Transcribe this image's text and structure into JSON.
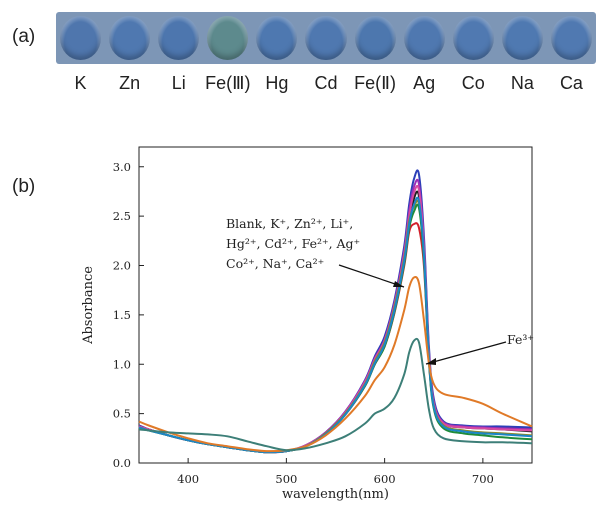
{
  "panel_a": {
    "label": "(a)",
    "wells": [
      {
        "label": "K",
        "color": "#4f76ad"
      },
      {
        "label": "Zn",
        "color": "#4f78b0"
      },
      {
        "label": "Li",
        "color": "#4d76ae"
      },
      {
        "label": "Fe(Ⅲ)",
        "color": "#5d8a8d"
      },
      {
        "label": "Hg",
        "color": "#4e78b0"
      },
      {
        "label": "Cd",
        "color": "#4f78b0"
      },
      {
        "label": "Fe(Ⅱ)",
        "color": "#4d77ae"
      },
      {
        "label": "Ag",
        "color": "#4f78b0"
      },
      {
        "label": "Co",
        "color": "#5079b1"
      },
      {
        "label": "Na",
        "color": "#4f79b1"
      },
      {
        "label": "Ca",
        "color": "#5079b1"
      }
    ]
  },
  "panel_b": {
    "label": "(b)",
    "annotation_group": [
      "Blank, K⁺, Zn²⁺, Li⁺,",
      "Hg²⁺, Cd²⁺, Fe²⁺, Ag⁺",
      "Co²⁺, Na⁺, Ca²⁺"
    ],
    "annotation_fe3": "Fe³⁺"
  },
  "chart_data": {
    "type": "line",
    "xlabel": "wavelength(nm)",
    "ylabel": "Absorbance",
    "xlim": [
      350,
      750
    ],
    "ylim": [
      0,
      3.2
    ],
    "xticks": [
      400,
      500,
      600,
      700
    ],
    "yticks": [
      0.0,
      0.5,
      1.0,
      1.5,
      2.0,
      2.5,
      3.0
    ],
    "ytick_labels": [
      "0.0",
      "0.5",
      "1.0",
      "1.5",
      "2.0",
      "2.5",
      "3.0"
    ],
    "x": [
      350,
      360,
      380,
      400,
      420,
      440,
      460,
      480,
      500,
      520,
      540,
      560,
      580,
      590,
      600,
      610,
      620,
      625,
      630,
      635,
      640,
      645,
      650,
      660,
      680,
      700,
      720,
      750
    ],
    "series": [
      {
        "color": "#1f1f1f",
        "values": [
          0.37,
          0.34,
          0.28,
          0.23,
          0.19,
          0.16,
          0.13,
          0.11,
          0.12,
          0.17,
          0.3,
          0.5,
          0.8,
          1.02,
          1.2,
          1.55,
          2.05,
          2.4,
          2.68,
          2.7,
          2.1,
          1.1,
          0.6,
          0.4,
          0.36,
          0.35,
          0.34,
          0.32
        ]
      },
      {
        "color": "#d21f2a",
        "values": [
          0.38,
          0.34,
          0.28,
          0.23,
          0.19,
          0.16,
          0.13,
          0.11,
          0.12,
          0.17,
          0.3,
          0.49,
          0.78,
          1.0,
          1.18,
          1.52,
          2.0,
          2.34,
          2.42,
          2.38,
          2.0,
          1.05,
          0.58,
          0.4,
          0.37,
          0.36,
          0.36,
          0.35
        ]
      },
      {
        "color": "#2c3fb8",
        "values": [
          0.38,
          0.34,
          0.28,
          0.23,
          0.19,
          0.16,
          0.13,
          0.11,
          0.12,
          0.18,
          0.31,
          0.52,
          0.84,
          1.08,
          1.28,
          1.65,
          2.2,
          2.62,
          2.88,
          2.92,
          2.3,
          1.2,
          0.65,
          0.42,
          0.38,
          0.37,
          0.37,
          0.36
        ]
      },
      {
        "color": "#9b2fb8",
        "values": [
          0.37,
          0.34,
          0.28,
          0.23,
          0.19,
          0.16,
          0.13,
          0.11,
          0.12,
          0.18,
          0.31,
          0.52,
          0.83,
          1.06,
          1.25,
          1.62,
          2.15,
          2.55,
          2.8,
          2.82,
          2.22,
          1.15,
          0.62,
          0.41,
          0.37,
          0.36,
          0.35,
          0.34
        ]
      },
      {
        "color": "#d64aa0",
        "values": [
          0.37,
          0.34,
          0.28,
          0.23,
          0.19,
          0.16,
          0.13,
          0.11,
          0.12,
          0.18,
          0.3,
          0.51,
          0.82,
          1.05,
          1.24,
          1.6,
          2.12,
          2.5,
          2.74,
          2.76,
          2.18,
          1.12,
          0.6,
          0.4,
          0.36,
          0.35,
          0.34,
          0.33
        ]
      },
      {
        "color": "#8a8a2c",
        "values": [
          0.36,
          0.33,
          0.28,
          0.23,
          0.19,
          0.16,
          0.13,
          0.11,
          0.12,
          0.17,
          0.3,
          0.5,
          0.8,
          1.03,
          1.22,
          1.58,
          2.08,
          2.45,
          2.6,
          2.62,
          2.1,
          1.08,
          0.58,
          0.38,
          0.33,
          0.31,
          0.3,
          0.28
        ]
      },
      {
        "color": "#1f8c3a",
        "values": [
          0.35,
          0.33,
          0.28,
          0.23,
          0.19,
          0.16,
          0.13,
          0.11,
          0.12,
          0.17,
          0.29,
          0.49,
          0.78,
          1.0,
          1.18,
          1.53,
          2.02,
          2.38,
          2.55,
          2.58,
          2.06,
          1.05,
          0.55,
          0.35,
          0.3,
          0.28,
          0.26,
          0.24
        ]
      },
      {
        "color": "#1b86c7",
        "values": [
          0.36,
          0.33,
          0.28,
          0.23,
          0.19,
          0.16,
          0.13,
          0.11,
          0.12,
          0.17,
          0.29,
          0.49,
          0.79,
          1.01,
          1.2,
          1.55,
          2.05,
          2.42,
          2.62,
          2.65,
          2.12,
          1.08,
          0.57,
          0.37,
          0.32,
          0.3,
          0.29,
          0.27
        ]
      },
      {
        "color": "#e07a28",
        "values": [
          0.42,
          0.38,
          0.31,
          0.25,
          0.2,
          0.17,
          0.14,
          0.12,
          0.13,
          0.17,
          0.28,
          0.45,
          0.68,
          0.84,
          0.97,
          1.2,
          1.55,
          1.78,
          1.88,
          1.82,
          1.45,
          1.02,
          0.8,
          0.7,
          0.66,
          0.6,
          0.5,
          0.37
        ]
      },
      {
        "color": "#3d7f78",
        "values": [
          0.34,
          0.33,
          0.31,
          0.3,
          0.29,
          0.27,
          0.22,
          0.17,
          0.13,
          0.15,
          0.2,
          0.27,
          0.4,
          0.5,
          0.55,
          0.66,
          0.9,
          1.12,
          1.24,
          1.22,
          0.9,
          0.55,
          0.35,
          0.25,
          0.22,
          0.21,
          0.21,
          0.2
        ]
      }
    ]
  }
}
